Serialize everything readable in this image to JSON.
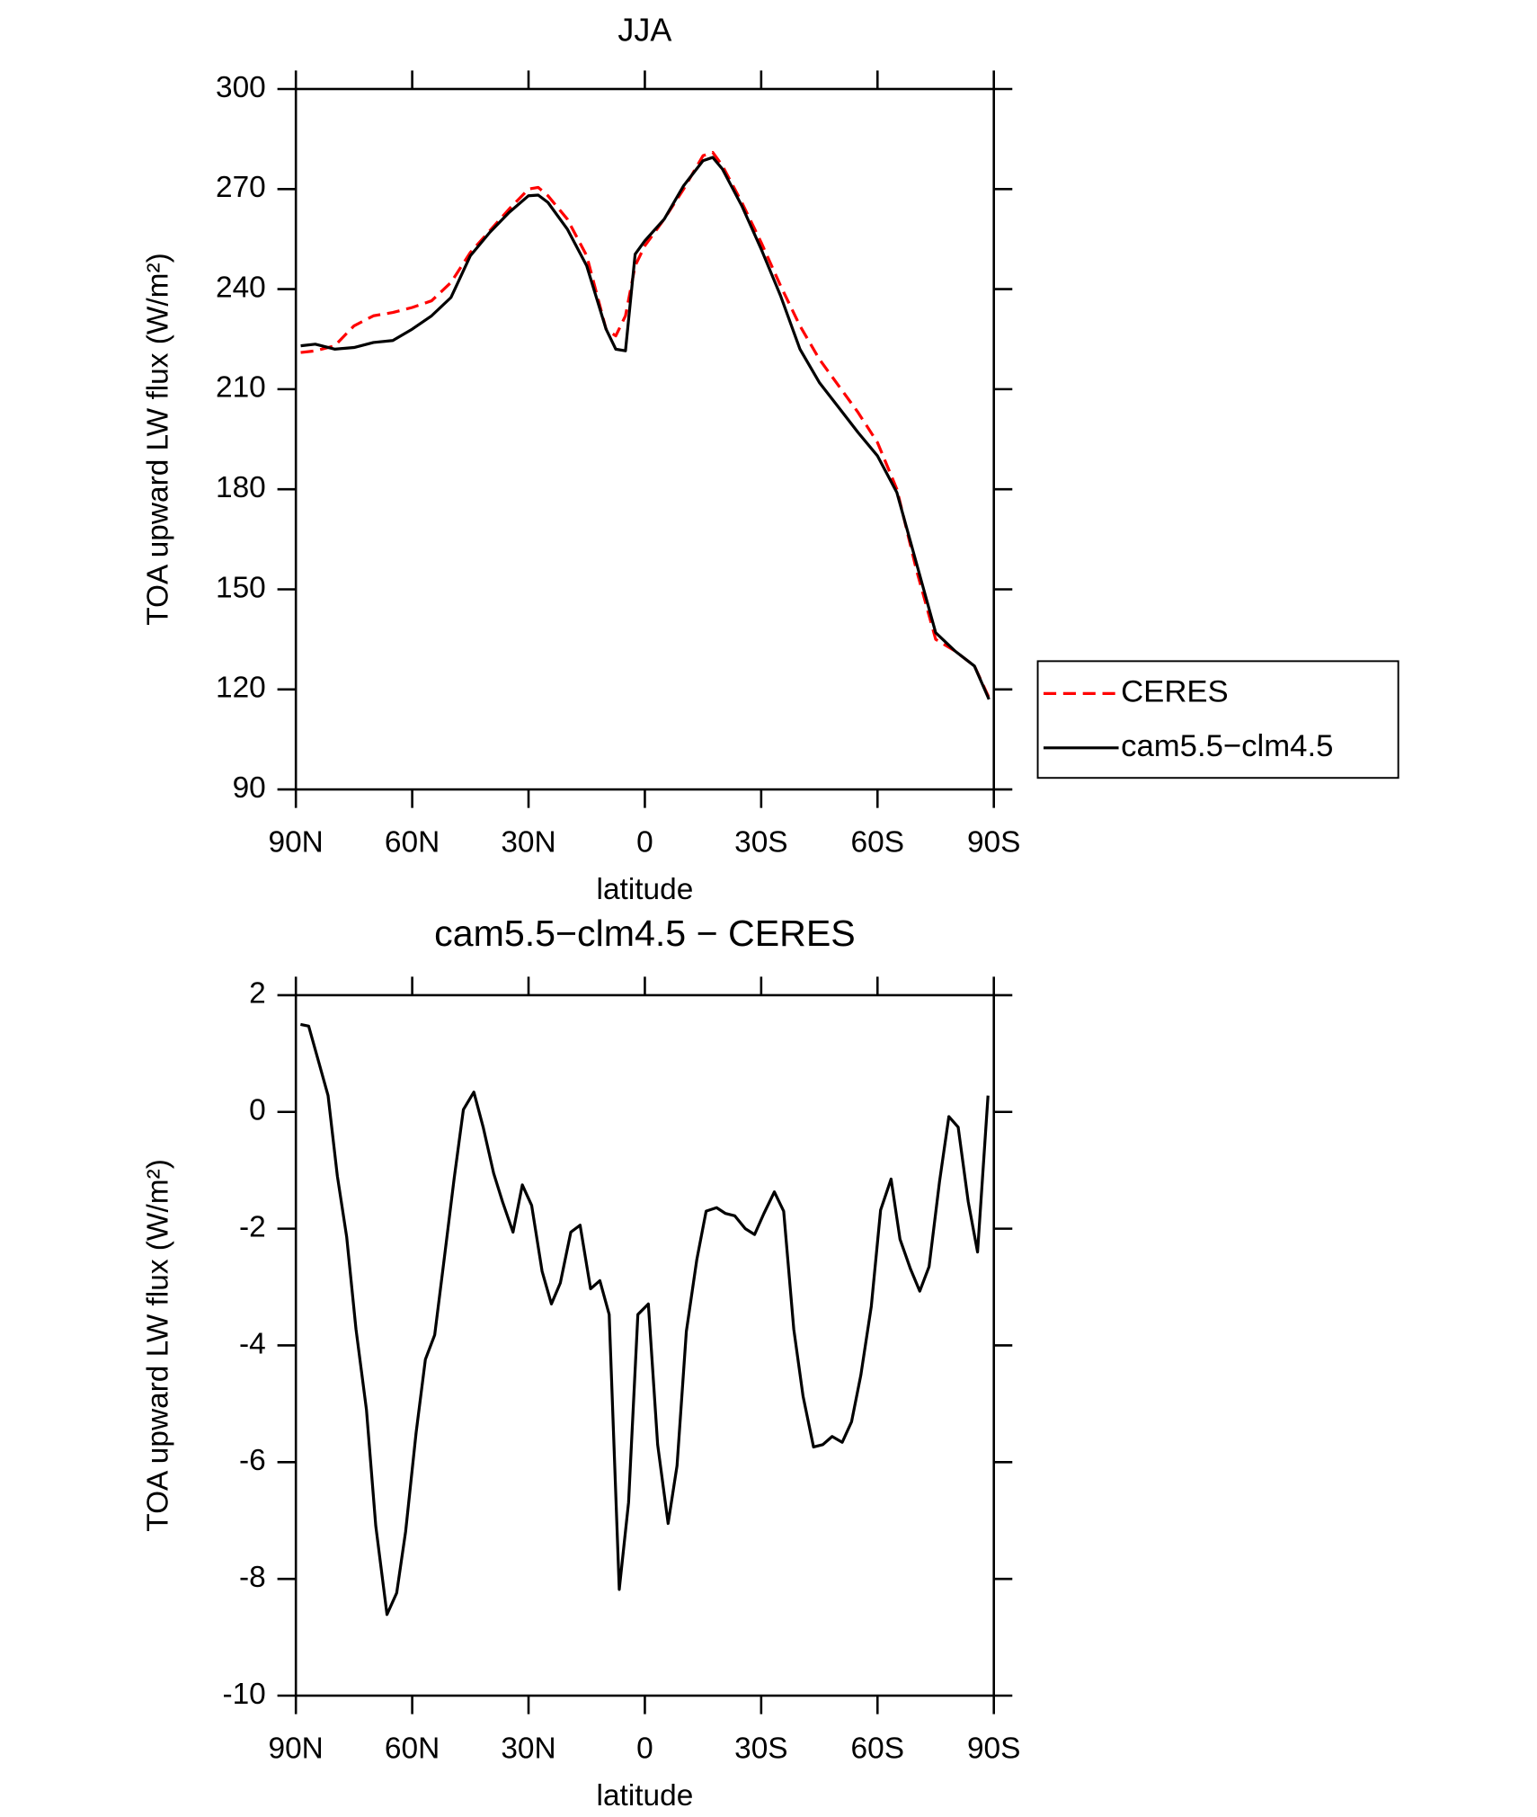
{
  "chart_data": [
    {
      "type": "line",
      "title": "JJA",
      "xlabel": "latitude",
      "ylabel": "TOA upward LW flux (W/m²)",
      "x": [
        88.75,
        85,
        80,
        75,
        70,
        65,
        60,
        55,
        50,
        45,
        40,
        35,
        30,
        27.5,
        25,
        20,
        15,
        10,
        7.5,
        5,
        2.5,
        0,
        -5,
        -10,
        -15,
        -17.5,
        -20,
        -25,
        -30,
        -35,
        -40,
        -45,
        -50,
        -55,
        -60,
        -65,
        -70,
        -75,
        -80,
        -85,
        -88.75
      ],
      "xlim": [
        90,
        -90
      ],
      "xticks": [
        {
          "value": 90,
          "label": "90N"
        },
        {
          "value": 60,
          "label": "60N"
        },
        {
          "value": 30,
          "label": "30N"
        },
        0,
        {
          "value": -30,
          "label": "30S"
        },
        {
          "value": -60,
          "label": "60S"
        },
        {
          "value": -90,
          "label": "90S"
        }
      ],
      "ylim": [
        90,
        300
      ],
      "yticks": [
        90,
        120,
        150,
        180,
        210,
        240,
        270,
        300
      ],
      "legend": "right",
      "series": [
        {
          "name": "CERES",
          "color": "#ff0000",
          "dashed": true,
          "values": [
            221,
            221.5,
            223,
            229,
            232,
            233,
            234.5,
            236.5,
            242,
            251,
            257.5,
            264,
            270,
            270.5,
            268,
            261,
            250,
            228,
            226,
            232,
            247,
            253,
            261,
            270,
            280,
            281,
            277,
            266,
            254,
            241,
            229,
            219,
            211,
            203,
            194,
            180,
            156,
            135,
            131.5,
            127,
            117.5
          ]
        },
        {
          "name": "cam5.5−clm4.5",
          "color": "#000000",
          "dashed": false,
          "values": [
            223,
            223.5,
            222,
            222.5,
            224,
            224.6,
            228,
            232,
            237.5,
            250,
            257,
            263,
            268,
            268.2,
            266,
            258,
            247,
            228,
            222,
            221.5,
            250.5,
            254.5,
            261,
            271,
            278.5,
            279.5,
            276,
            265,
            252,
            238,
            222,
            212,
            204.5,
            197,
            190,
            179,
            158,
            137,
            131.5,
            127,
            117
          ]
        }
      ]
    },
    {
      "type": "line",
      "title": "cam5.5−clm4.5 − CERES",
      "xlabel": "latitude",
      "ylabel": "TOA upward LW flux (W/m²)",
      "x": [
        88.8,
        86.7,
        84,
        81.7,
        79.3,
        76.9,
        74.5,
        71.8,
        69.4,
        66.5,
        64,
        61.7,
        59,
        56.6,
        54.2,
        51.6,
        49.2,
        46.8,
        44.1,
        41.7,
        39,
        36.7,
        34,
        31.6,
        29.2,
        26.5,
        24.1,
        21.8,
        19.1,
        16.7,
        14,
        11.6,
        9.2,
        6.6,
        4.2,
        1.8,
        -0.9,
        -3.3,
        -6,
        -8.3,
        -10.7,
        -13.4,
        -15.8,
        -18.5,
        -20.8,
        -23.2,
        -25.9,
        -28.3,
        -30.7,
        -33.4,
        -35.8,
        -38.4,
        -40.8,
        -43.5,
        -45.9,
        -48.3,
        -50.9,
        -53.3,
        -55.7,
        -58.4,
        -60.8,
        -63.5,
        -65.8,
        -68.5,
        -70.9,
        -73.3,
        -76,
        -78.4,
        -80.8,
        -83.4,
        -85.8,
        -88.5
      ],
      "xlim": [
        90,
        -90
      ],
      "xticks": [
        {
          "value": 90,
          "label": "90N"
        },
        {
          "value": 60,
          "label": "60N"
        },
        {
          "value": 30,
          "label": "30N"
        },
        0,
        {
          "value": -30,
          "label": "30S"
        },
        {
          "value": -60,
          "label": "60S"
        },
        {
          "value": -90,
          "label": "90S"
        }
      ],
      "ylim": [
        -10,
        2
      ],
      "yticks": [
        -10,
        -8,
        -6,
        -4,
        -2,
        0,
        2
      ],
      "series": [
        {
          "color": "#000000",
          "dashed": false,
          "values": [
            1.5,
            1.47,
            0.83,
            0.28,
            -1.1,
            -2.14,
            -3.72,
            -5.1,
            -7.09,
            -8.61,
            -8.24,
            -7.19,
            -5.5,
            -4.24,
            -3.82,
            -2.44,
            -1.15,
            0.04,
            0.34,
            -0.26,
            -1.05,
            -1.54,
            -2.06,
            -1.25,
            -1.6,
            -2.73,
            -3.29,
            -2.93,
            -2.06,
            -1.94,
            -3.03,
            -2.89,
            -3.47,
            -8.18,
            -6.69,
            -3.47,
            -3.29,
            -5.7,
            -7.05,
            -6.06,
            -3.76,
            -2.53,
            -1.7,
            -1.64,
            -1.74,
            -1.78,
            -2,
            -2.1,
            -1.74,
            -1.37,
            -1.7,
            -3.72,
            -4.87,
            -5.74,
            -5.7,
            -5.56,
            -5.66,
            -5.31,
            -4.51,
            -3.33,
            -1.68,
            -1.15,
            -2.18,
            -2.69,
            -3.07,
            -2.65,
            -1.19,
            -0.08,
            -0.26,
            -1.54,
            -2.4,
            0.28
          ]
        }
      ]
    }
  ]
}
